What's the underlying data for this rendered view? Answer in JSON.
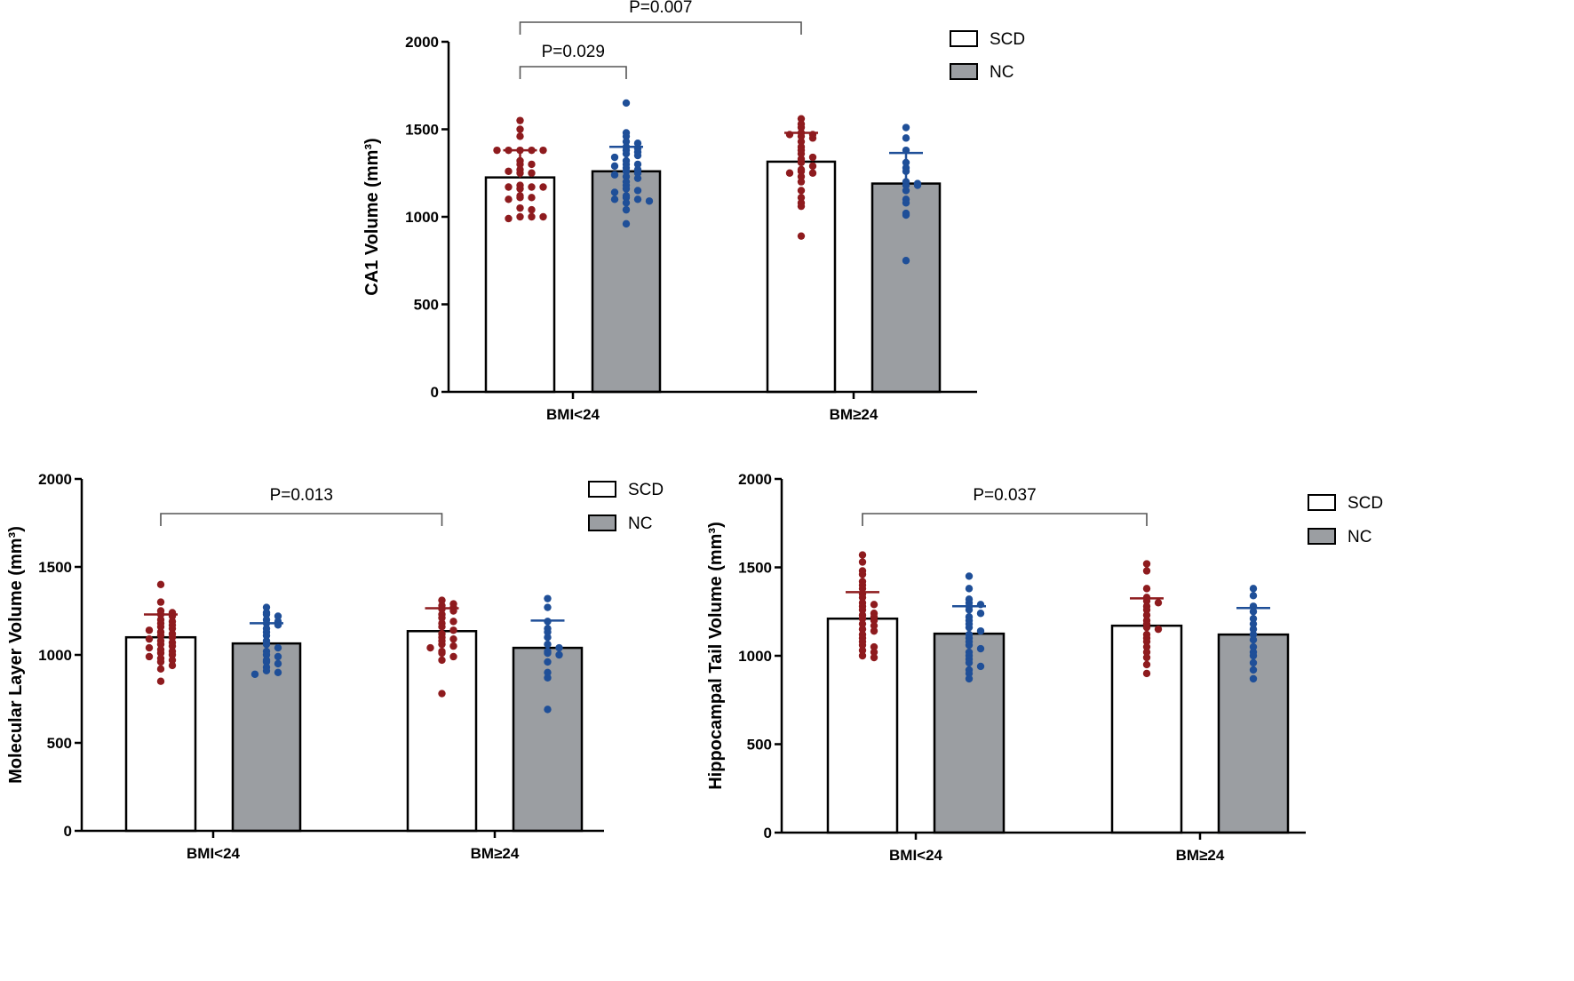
{
  "colors": {
    "scd_fill": "#ffffff",
    "nc_fill": "#9b9ea2",
    "scd_dot": "#8e1b1e",
    "nc_dot": "#1f4f98",
    "axis": "#000000",
    "bracket": "#555555"
  },
  "chart_data": [
    {
      "type": "bar",
      "title": "",
      "ylabel": "CA1 Volume (mm³)",
      "xlabel": "",
      "ylim": [
        0,
        2000
      ],
      "yticks": [
        "0",
        "500",
        "1000",
        "1500",
        "2000"
      ],
      "categories": [
        "BMI<24",
        "BM≥24"
      ],
      "legend": {
        "position": "top-right",
        "entries": [
          "SCD",
          "NC"
        ]
      },
      "series": [
        {
          "name": "SCD",
          "means": [
            1225,
            1315
          ],
          "sd": [
            155,
            165
          ],
          "points": [
            [
              1550,
              1500,
              1460,
              1380,
              1380,
              1380,
              1380,
              1380,
              1320,
              1300,
              1300,
              1270,
              1250,
              1250,
              1260,
              1180,
              1170,
              1160,
              1170,
              1170,
              1120,
              1110,
              1110,
              1100,
              1050,
              1040,
              1000,
              1000,
              990,
              1000
            ],
            [
              1560,
              1530,
              1510,
              1480,
              1470,
              1470,
              1460,
              1450,
              1430,
              1400,
              1380,
              1360,
              1340,
              1330,
              1310,
              1290,
              1270,
              1260,
              1250,
              1250,
              1230,
              1200,
              1150,
              1110,
              1080,
              1060,
              890
            ]
          ]
        },
        {
          "name": "NC",
          "means": [
            1260,
            1190
          ],
          "sd": [
            140,
            175
          ],
          "points": [
            [
              1650,
              1480,
              1460,
              1430,
              1420,
              1400,
              1390,
              1380,
              1370,
              1360,
              1350,
              1340,
              1320,
              1300,
              1300,
              1290,
              1280,
              1270,
              1260,
              1250,
              1240,
              1230,
              1220,
              1200,
              1180,
              1160,
              1150,
              1140,
              1120,
              1110,
              1100,
              1100,
              1090,
              1080,
              1040,
              960
            ],
            [
              1510,
              1450,
              1380,
              1310,
              1280,
              1260,
              1200,
              1190,
              1180,
              1180,
              1150,
              1100,
              1080,
              1020,
              1010,
              750
            ]
          ]
        }
      ],
      "annotations": [
        {
          "text": "P=0.007",
          "from": [
            "BMI<24",
            "SCD"
          ],
          "to": [
            "BM≥24",
            "SCD"
          ]
        },
        {
          "text": "P=0.029",
          "from": [
            "BMI<24",
            "SCD"
          ],
          "to": [
            "BMI<24",
            "NC"
          ]
        }
      ]
    },
    {
      "type": "bar",
      "title": "",
      "ylabel": "Molecular Layer  Volume (mm³)",
      "xlabel": "",
      "ylim": [
        0,
        2000
      ],
      "yticks": [
        "0",
        "500",
        "1000",
        "1500",
        "2000"
      ],
      "categories": [
        "BMI<24",
        "BM≥24"
      ],
      "legend": {
        "position": "top-right",
        "entries": [
          "SCD",
          "NC"
        ]
      },
      "series": [
        {
          "name": "SCD",
          "means": [
            1100,
            1135
          ],
          "sd": [
            130,
            130
          ],
          "points": [
            [
              1400,
              1300,
              1250,
              1240,
              1230,
              1220,
              1200,
              1190,
              1180,
              1170,
              1160,
              1150,
              1140,
              1130,
              1120,
              1110,
              1100,
              1090,
              1080,
              1070,
              1060,
              1050,
              1040,
              1030,
              1020,
              1010,
              1000,
              990,
              980,
              970,
              960,
              940,
              920,
              850
            ],
            [
              1310,
              1290,
              1280,
              1270,
              1260,
              1250,
              1230,
              1210,
              1190,
              1180,
              1160,
              1140,
              1120,
              1100,
              1090,
              1080,
              1060,
              1050,
              1040,
              1020,
              1010,
              990,
              970,
              780
            ]
          ]
        },
        {
          "name": "NC",
          "means": [
            1065,
            1040
          ],
          "sd": [
            115,
            155
          ],
          "points": [
            [
              1270,
              1240,
              1230,
              1220,
              1200,
              1190,
              1180,
              1170,
              1150,
              1130,
              1110,
              1080,
              1060,
              1040,
              1020,
              1000,
              990,
              970,
              960,
              950,
              930,
              910,
              900,
              890
            ],
            [
              1320,
              1270,
              1190,
              1150,
              1130,
              1100,
              1060,
              1040,
              1020,
              1010,
              1000,
              960,
              900,
              870,
              690
            ]
          ]
        }
      ],
      "annotations": [
        {
          "text": "P=0.013",
          "from": [
            "BMI<24",
            "SCD"
          ],
          "to": [
            "BM≥24",
            "SCD"
          ]
        }
      ]
    },
    {
      "type": "bar",
      "title": "",
      "ylabel": "Hippocampal Tail  Volume (mm³)",
      "xlabel": "",
      "ylim": [
        0,
        2000
      ],
      "yticks": [
        "0",
        "500",
        "1000",
        "1500",
        "2000"
      ],
      "categories": [
        "BMI<24",
        "BM≥24"
      ],
      "legend": {
        "position": "top-right",
        "entries": [
          "SCD",
          "NC"
        ]
      },
      "series": [
        {
          "name": "SCD",
          "means": [
            1210,
            1170
          ],
          "sd": [
            150,
            155
          ],
          "points": [
            [
              1570,
              1530,
              1480,
              1460,
              1420,
              1400,
              1380,
              1350,
              1330,
              1300,
              1290,
              1280,
              1260,
              1240,
              1230,
              1220,
              1210,
              1200,
              1180,
              1170,
              1150,
              1140,
              1120,
              1100,
              1080,
              1060,
              1050,
              1030,
              1020,
              1000,
              990
            ],
            [
              1520,
              1480,
              1380,
              1330,
              1310,
              1300,
              1280,
              1260,
              1230,
              1200,
              1180,
              1160,
              1150,
              1120,
              1100,
              1080,
              1050,
              1020,
              990,
              950,
              900
            ]
          ]
        },
        {
          "name": "NC",
          "means": [
            1125,
            1120
          ],
          "sd": [
            155,
            150
          ],
          "points": [
            [
              1450,
              1380,
              1320,
              1300,
              1290,
              1280,
              1260,
              1240,
              1220,
              1200,
              1180,
              1160,
              1140,
              1120,
              1100,
              1080,
              1060,
              1040,
              1020,
              1000,
              980,
              960,
              940,
              920,
              900,
              870
            ],
            [
              1380,
              1340,
              1280,
              1250,
              1210,
              1180,
              1150,
              1120,
              1090,
              1050,
              1020,
              1000,
              960,
              920,
              870
            ]
          ]
        }
      ],
      "annotations": [
        {
          "text": "P=0.037",
          "from": [
            "BMI<24",
            "SCD"
          ],
          "to": [
            "BM≥24",
            "SCD"
          ]
        }
      ]
    }
  ]
}
